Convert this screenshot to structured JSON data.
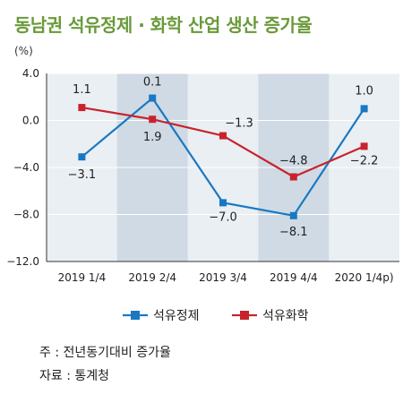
{
  "chart_data": {
    "type": "line",
    "title": "동남권 석유정제 · 화학 산업 생산 증가율",
    "unit": "(%)",
    "categories": [
      "2019 1/4",
      "2019 2/4",
      "2019 3/4",
      "2019 4/4",
      "2020 1/4p)"
    ],
    "series": [
      {
        "name": "석유정제",
        "color": "#1a78c2",
        "values": [
          -3.1,
          1.9,
          -7.0,
          -8.1,
          1.0
        ],
        "labels": [
          "−3.1",
          "1.9",
          "−7.0",
          "−8.1",
          "1.0"
        ]
      },
      {
        "name": "석유화학",
        "color": "#c8232c",
        "values": [
          1.1,
          0.1,
          -1.3,
          -4.8,
          -2.2
        ],
        "labels": [
          "1.1",
          "0.1",
          "−1.3",
          "−4.8",
          "−2.2"
        ]
      }
    ],
    "ylim": [
      -12.0,
      4.0
    ],
    "yticks": [
      4.0,
      0.0,
      -4.0,
      -8.0,
      -12.0
    ],
    "ytick_labels": [
      "4.0",
      "0.0",
      "−4.0",
      "−8.0",
      "−12.0"
    ],
    "shaded_categories": [
      1,
      3
    ],
    "legend_position": "bottom-center",
    "notes": [
      "주 : 전년동기대비 증가율",
      "자료 : 통계청"
    ]
  }
}
